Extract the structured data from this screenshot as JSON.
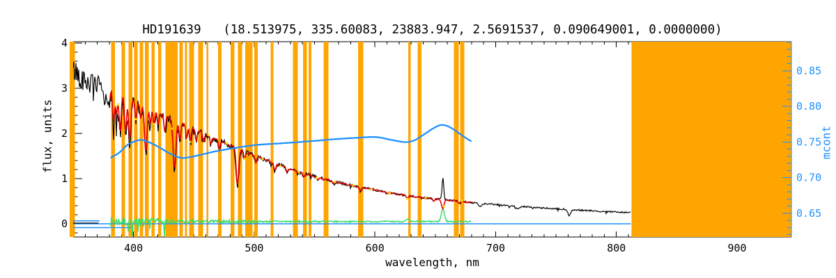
{
  "chart_data": {
    "type": "line",
    "title": "HD191639   (18.513975, 335.60083, 23883.947, 2.5691537, 0.090649001, 0.0000000)",
    "xlabel": "wavelength, nm",
    "ylabel_left": "flux, units",
    "ylabel_right": "mcont",
    "x_range": [
      350,
      945
    ],
    "y_left_range": [
      -0.292,
      4.031
    ],
    "y_right_range": [
      0.6168,
      0.8909
    ],
    "x_major_ticks": [
      {
        "v": 400,
        "label": "400"
      },
      {
        "v": 500,
        "label": "500"
      },
      {
        "v": 600,
        "label": "600"
      },
      {
        "v": 700,
        "label": "700"
      },
      {
        "v": 800,
        "label": "800"
      },
      {
        "v": 900,
        "label": "900"
      }
    ],
    "x_minor_step": 10,
    "y_left_major_ticks": [
      {
        "v": 0,
        "label": "0"
      },
      {
        "v": 1,
        "label": "1"
      },
      {
        "v": 2,
        "label": "2"
      },
      {
        "v": 3,
        "label": "3"
      },
      {
        "v": 4,
        "label": "4"
      }
    ],
    "y_left_minor_step": 0.2,
    "y_right_major_ticks": [
      {
        "v": 0.65,
        "label": "0.65"
      },
      {
        "v": 0.7,
        "label": "0.70"
      },
      {
        "v": 0.75,
        "label": "0.75"
      },
      {
        "v": 0.8,
        "label": "0.80"
      },
      {
        "v": 0.85,
        "label": "0.85"
      }
    ],
    "y_right_minor_step": 0.01,
    "colors": {
      "background": "#ffffff",
      "axis": "#000000",
      "masked_band": "#FFA500",
      "observed": "#000000",
      "fit": "#EB0000",
      "mcont": "#1E90FF",
      "residual": "#39DD63",
      "fit_markers": "#FFE200",
      "right_axis": "#1E90FF"
    },
    "masked_bands": [
      [
        346.0,
        351.5
      ],
      [
        381.5,
        384.5
      ],
      [
        390.0,
        393.0
      ],
      [
        396.0,
        399.0
      ],
      [
        400.5,
        403.5
      ],
      [
        405.0,
        408.0
      ],
      [
        409.5,
        412.5
      ],
      [
        415.0,
        417.5
      ],
      [
        420.5,
        423.0
      ],
      [
        426.5,
        436.5
      ],
      [
        438.0,
        441.0
      ],
      [
        442.5,
        444.5
      ],
      [
        446.0,
        450.0
      ],
      [
        453.5,
        457.5
      ],
      [
        460.5,
        462.0
      ],
      [
        470.0,
        473.0
      ],
      [
        480.5,
        483.5
      ],
      [
        486.5,
        490.0
      ],
      [
        492.5,
        498.5
      ],
      [
        500.0,
        503.0
      ],
      [
        513.5,
        516.0
      ],
      [
        532.0,
        536.0
      ],
      [
        540.5,
        543.5
      ],
      [
        545.0,
        547.5
      ],
      [
        557.5,
        561.5
      ],
      [
        586.0,
        590.5
      ],
      [
        627.5,
        629.5
      ],
      [
        635.5,
        638.5
      ],
      [
        665.5,
        669.5
      ],
      [
        670.5,
        674.0
      ],
      [
        812.5,
        945.0
      ]
    ],
    "observed_spectrum": {
      "x_range": [
        350,
        812
      ],
      "seed": 42,
      "continuum": [
        [
          350,
          3.4
        ],
        [
          355,
          3.3
        ],
        [
          360,
          3.16
        ],
        [
          366,
          3.09
        ],
        [
          372,
          3.05
        ],
        [
          378,
          3.07
        ],
        [
          382,
          3.0
        ],
        [
          388,
          2.9
        ],
        [
          394,
          2.81
        ],
        [
          400,
          2.72
        ],
        [
          406,
          2.64
        ],
        [
          412,
          2.56
        ],
        [
          418,
          2.49
        ],
        [
          424,
          2.42
        ],
        [
          430,
          2.35
        ],
        [
          436,
          2.27
        ],
        [
          442,
          2.2
        ],
        [
          448,
          2.12
        ],
        [
          454,
          2.05
        ],
        [
          460,
          1.98
        ],
        [
          466,
          1.9
        ],
        [
          472,
          1.83
        ],
        [
          478,
          1.76
        ],
        [
          484,
          1.7
        ],
        [
          490,
          1.62
        ],
        [
          496,
          1.55
        ],
        [
          502,
          1.49
        ],
        [
          510,
          1.41
        ],
        [
          518,
          1.33
        ],
        [
          526,
          1.25
        ],
        [
          534,
          1.17
        ],
        [
          542,
          1.11
        ],
        [
          550,
          1.05
        ],
        [
          558,
          0.99
        ],
        [
          566,
          0.94
        ],
        [
          574,
          0.89
        ],
        [
          582,
          0.84
        ],
        [
          590,
          0.8
        ],
        [
          598,
          0.76
        ],
        [
          606,
          0.72
        ],
        [
          614,
          0.68
        ],
        [
          622,
          0.64
        ],
        [
          630,
          0.61
        ],
        [
          638,
          0.585
        ],
        [
          646,
          0.56
        ],
        [
          654,
          0.54
        ],
        [
          662,
          0.52
        ],
        [
          670,
          0.5
        ],
        [
          678,
          0.475
        ],
        [
          686,
          0.455
        ],
        [
          694,
          0.44
        ],
        [
          702,
          0.42
        ],
        [
          712,
          0.4
        ],
        [
          722,
          0.38
        ],
        [
          732,
          0.36
        ],
        [
          742,
          0.345
        ],
        [
          752,
          0.33
        ],
        [
          762,
          0.315
        ],
        [
          772,
          0.3
        ],
        [
          782,
          0.285
        ],
        [
          792,
          0.27
        ],
        [
          802,
          0.26
        ],
        [
          812,
          0.25
        ]
      ],
      "absorption_lines": [
        [
          375.0,
          0.3,
          0.8
        ],
        [
          377.1,
          0.35,
          0.8
        ],
        [
          379.8,
          0.45,
          0.9
        ],
        [
          383.5,
          0.75,
          1.0
        ],
        [
          386.0,
          0.55,
          0.9
        ],
        [
          388.9,
          0.9,
          1.0
        ],
        [
          393.4,
          0.85,
          1.0
        ],
        [
          396.9,
          0.95,
          1.1
        ],
        [
          402.0,
          0.4,
          0.8
        ],
        [
          406.0,
          0.35,
          0.8
        ],
        [
          410.2,
          1.05,
          1.2
        ],
        [
          414.0,
          0.35,
          0.8
        ],
        [
          417.0,
          0.3,
          0.8
        ],
        [
          420.5,
          0.3,
          0.8
        ],
        [
          426.0,
          0.38,
          0.9
        ],
        [
          434.0,
          1.15,
          1.3
        ],
        [
          438.5,
          0.4,
          0.9
        ],
        [
          444.0,
          0.3,
          0.8
        ],
        [
          447.1,
          0.35,
          0.8
        ],
        [
          452.0,
          0.25,
          0.8
        ],
        [
          458.0,
          0.2,
          0.8
        ],
        [
          464.0,
          0.18,
          0.8
        ],
        [
          471.0,
          0.2,
          0.8
        ],
        [
          486.1,
          0.85,
          1.2
        ],
        [
          492.0,
          0.17,
          0.8
        ],
        [
          501.5,
          0.14,
          0.8
        ],
        [
          517.2,
          0.17,
          1.0
        ],
        [
          527.0,
          0.1,
          0.8
        ],
        [
          541.0,
          0.09,
          0.8
        ],
        [
          553.0,
          0.07,
          0.8
        ],
        [
          566.0,
          0.06,
          0.8
        ],
        [
          588.0,
          0.1,
          0.9
        ],
        [
          610.0,
          0.05,
          0.8
        ],
        [
          627.0,
          0.06,
          0.8
        ],
        [
          649.0,
          0.05,
          0.8
        ],
        [
          670.0,
          0.05,
          0.8
        ],
        [
          687.0,
          0.07,
          1.2
        ],
        [
          718.0,
          0.05,
          1.5
        ],
        [
          761.0,
          0.13,
          1.2
        ]
      ],
      "emission_line": {
        "wl": 656.3,
        "height": 0.5,
        "sigma": 0.7
      },
      "noise": {
        "base": 0.016,
        "amp": 0.27,
        "decay_nm": 75,
        "spike_prob": 0.06,
        "spike_scale": 2.2
      }
    },
    "template_fit": {
      "x_range": [
        380.5,
        681
      ],
      "depth_scale": 0.93,
      "sigma_scale": 0.85,
      "halpha_dip": [
        656.3,
        0.2,
        1.0
      ],
      "wiggle_amp": 0.013,
      "wiggle_freq": 0.9
    },
    "fit_markers_wavelengths": [
      387,
      402,
      417,
      432,
      447,
      462,
      477,
      492,
      507,
      522,
      537,
      552,
      567,
      582,
      597,
      612,
      627,
      642,
      657,
      672
    ],
    "mcont_curve": {
      "x_range": [
        381,
        680
      ],
      "points": [
        [
          381,
          0.728
        ],
        [
          388,
          0.735
        ],
        [
          395,
          0.746
        ],
        [
          401,
          0.751
        ],
        [
          407,
          0.753
        ],
        [
          414,
          0.749
        ],
        [
          422,
          0.742
        ],
        [
          430,
          0.734
        ],
        [
          439,
          0.728
        ],
        [
          447,
          0.729
        ],
        [
          455,
          0.732
        ],
        [
          468,
          0.737
        ],
        [
          485,
          0.742
        ],
        [
          502,
          0.746
        ],
        [
          520,
          0.748
        ],
        [
          537,
          0.75
        ],
        [
          552,
          0.752
        ],
        [
          566,
          0.754
        ],
        [
          585,
          0.756
        ],
        [
          601,
          0.757
        ],
        [
          614,
          0.753
        ],
        [
          625,
          0.75
        ],
        [
          632,
          0.752
        ],
        [
          640,
          0.76
        ],
        [
          648,
          0.769
        ],
        [
          655,
          0.774
        ],
        [
          662,
          0.771
        ],
        [
          670,
          0.762
        ],
        [
          676,
          0.755
        ],
        [
          680,
          0.751
        ]
      ]
    },
    "residual": {
      "x_range": [
        380.6,
        680
      ],
      "seed": 7,
      "baseline": 0.05,
      "bumps": [
        [
          656.3,
          0.28,
          1.3
        ],
        [
          627.0,
          0.05,
          1.0
        ]
      ],
      "noise_zones": [
        [
          400,
          0.1
        ],
        [
          437,
          0.065
        ],
        [
          500,
          0.035
        ],
        [
          560,
          0.022
        ],
        [
          680,
          0.016
        ]
      ],
      "spike": {
        "zone": [
          395,
          440
        ],
        "prob": 0.12,
        "mag": 0.3
      }
    },
    "zero_line_segments_blue": [
      [
        [
          350,
          0.0
        ],
        [
          812,
          0.0
        ]
      ],
      [
        [
          350,
          0.065
        ],
        [
          372,
          0.065
        ]
      ],
      [
        [
          350,
          -0.085
        ],
        [
          399,
          -0.085
        ]
      ]
    ],
    "zero_line_segments_black": [
      [
        [
          350,
          0.015
        ],
        [
          371,
          0.015
        ]
      ]
    ]
  }
}
